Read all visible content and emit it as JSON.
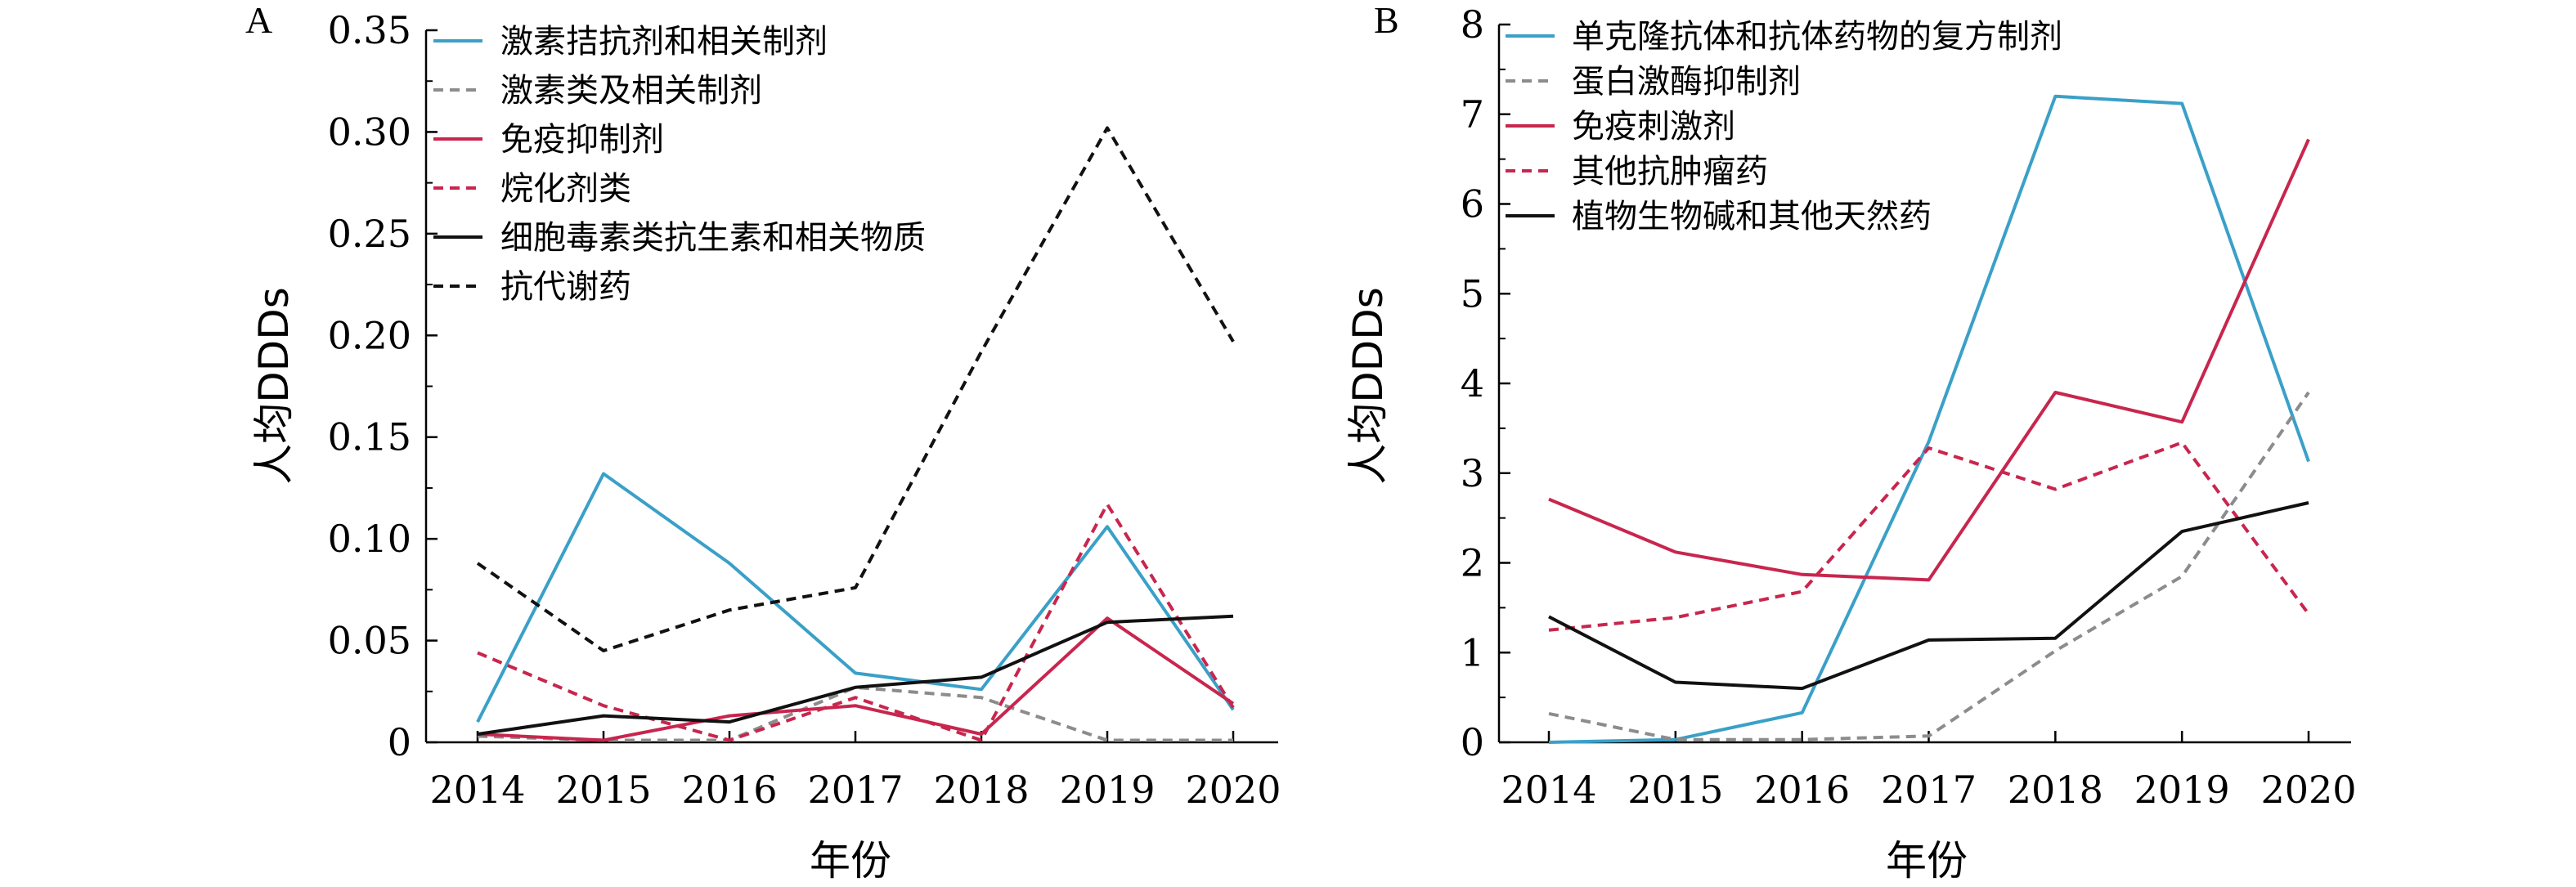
{
  "chart_data": [
    {
      "type": "line",
      "panel_label": "A",
      "xlabel": "年份",
      "ylabel": "人均DDDs",
      "x": [
        2014,
        2015,
        2016,
        2017,
        2018,
        2019,
        2020
      ],
      "ylim": [
        0,
        0.35
      ],
      "yticks": [
        "0",
        "0.05",
        "0.10",
        "0.15",
        "0.20",
        "0.25",
        "0.30",
        "0.35"
      ],
      "legend_position": "top-left",
      "series": [
        {
          "name": "激素拮抗剂和相关制剂",
          "color": "#3aa0c8",
          "dash": "solid",
          "values": [
            0.01,
            0.132,
            0.088,
            0.034,
            0.026,
            0.106,
            0.016
          ]
        },
        {
          "name": "激素类及相关制剂",
          "color": "#8c8c8c",
          "dash": "dashed",
          "values": [
            0.003,
            0.001,
            0.001,
            0.027,
            0.022,
            0.001,
            0.001
          ]
        },
        {
          "name": "免疫抑制剂",
          "color": "#c8264e",
          "dash": "solid",
          "values": [
            0.004,
            0.001,
            0.013,
            0.018,
            0.004,
            0.061,
            0.019
          ]
        },
        {
          "name": "烷化剂类",
          "color": "#c8264e",
          "dash": "dashed",
          "values": [
            0.044,
            0.018,
            0.001,
            0.022,
            0.001,
            0.117,
            0.017
          ]
        },
        {
          "name": "细胞毒素类抗生素和相关物质",
          "color": "#111111",
          "dash": "solid",
          "values": [
            0.004,
            0.013,
            0.01,
            0.027,
            0.032,
            0.059,
            0.062
          ]
        },
        {
          "name": "抗代谢药",
          "color": "#111111",
          "dash": "dashed",
          "values": [
            0.088,
            0.045,
            0.065,
            0.076,
            0.192,
            0.302,
            0.197
          ]
        }
      ]
    },
    {
      "type": "line",
      "panel_label": "B",
      "xlabel": "年份",
      "ylabel": "人均DDDs",
      "x": [
        2014,
        2015,
        2016,
        2017,
        2018,
        2019,
        2020
      ],
      "ylim": [
        0,
        8
      ],
      "yticks": [
        "0",
        "1",
        "2",
        "3",
        "4",
        "5",
        "6",
        "7",
        "8"
      ],
      "legend_position": "top-left",
      "series": [
        {
          "name": "单克隆抗体和抗体药物的复方制剂",
          "color": "#3aa0c8",
          "dash": "solid",
          "values": [
            0.0,
            0.03,
            0.33,
            3.35,
            7.2,
            7.12,
            3.13
          ]
        },
        {
          "name": "蛋白激酶抑制剂",
          "color": "#8c8c8c",
          "dash": "dashed",
          "values": [
            0.32,
            0.03,
            0.03,
            0.07,
            1.02,
            1.85,
            3.9
          ]
        },
        {
          "name": "免疫刺激剂",
          "color": "#c8264e",
          "dash": "solid",
          "values": [
            2.71,
            2.12,
            1.87,
            1.81,
            3.9,
            3.57,
            6.72
          ]
        },
        {
          "name": "其他抗肿瘤药",
          "color": "#c8264e",
          "dash": "dashed",
          "values": [
            1.25,
            1.39,
            1.68,
            3.28,
            2.82,
            3.34,
            1.43
          ]
        },
        {
          "name": "植物生物碱和其他天然药",
          "color": "#111111",
          "dash": "solid",
          "values": [
            1.4,
            0.67,
            0.6,
            1.14,
            1.16,
            2.35,
            2.67
          ]
        }
      ]
    }
  ]
}
